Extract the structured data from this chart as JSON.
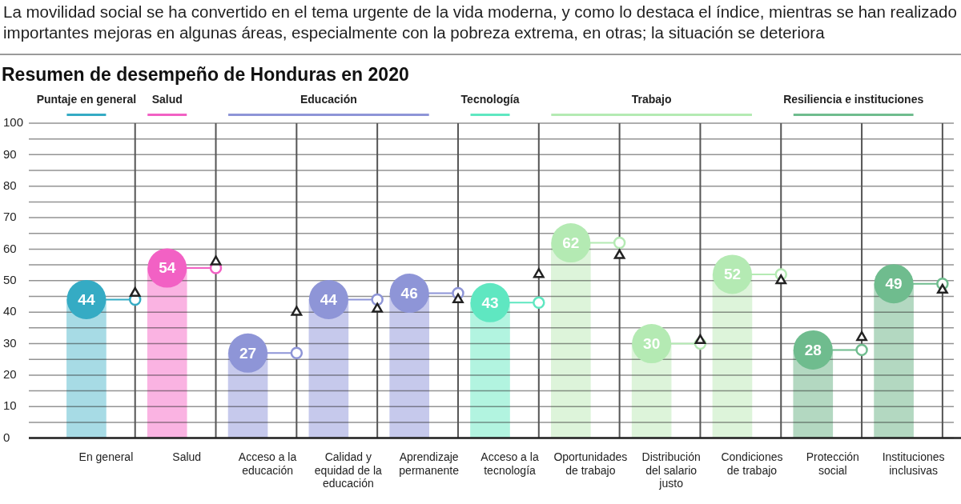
{
  "chart_data": {
    "type": "bar",
    "title": "Resumen de desempeño de Honduras en 2020",
    "subtitle": "La movilidad social se ha convertido en el tema urgente de la vida moderna, y como lo destaca el índice, mientras se han realizado importantes mejoras en algunas áreas, especialmente con la pobreza extrema, en otras; la situación se deteriora",
    "annotations": [
      "Puntaje en general",
      "Salud",
      "Educación",
      "Tecnología",
      "Trabajo",
      "Resiliencia e instituciones"
    ],
    "categories": [
      "En general",
      "Salud",
      "Acceso a la educación",
      "Calidad y equidad de la educación",
      "Aprendizaje permanente",
      "Acceso a la tecnología",
      "Oportunidades de trabajo",
      "Distribución del salario justo",
      "Condiciones de trabajo",
      "Protección social",
      "Instituciones inclusivas"
    ],
    "series": [
      {
        "colors": [
          "#a7dbe5",
          "#fab3e2",
          "#c6c9ec",
          "#c6c9ec",
          "#c6c9ec",
          "#b2f4e0",
          "#ddf4da",
          "#ddf4da",
          "#ddf4da",
          "#b3d8c1",
          "#b3d8c1"
        ],
        "values": [
          44,
          54,
          27,
          44,
          46,
          43,
          62,
          30,
          52,
          28,
          49
        ],
        "value_labels": [
          "44",
          "54",
          "27",
          "44",
          "46",
          "43",
          "62",
          "30",
          "52",
          "28",
          "49"
        ]
      },
      {
        "type": "scatter",
        "marker": "circle",
        "colors": [
          "#35abc4",
          "#f261c4",
          "#8e95d7",
          "#8e95d7",
          "#8e95d7",
          "#5fe7c1",
          "#b4eab3",
          "#b4eab3",
          "#b4eab3",
          "#6fbc8e",
          "#6fbc8e"
        ],
        "values": [
          44,
          54,
          27,
          44,
          46,
          43,
          62,
          30,
          52,
          28,
          49
        ]
      },
      {
        "type": "scatter",
        "marker": "triangle",
        "color": "#222222",
        "values": [
          46,
          56,
          40,
          41,
          44,
          52,
          58,
          31,
          50,
          32,
          47
        ]
      }
    ],
    "ylim": [
      0,
      100
    ],
    "yticks": [
      0,
      {
        "value": 5,
        "label": null
      },
      10,
      {
        "value": 15,
        "label": null
      },
      20,
      {
        "value": 25,
        "label": null
      },
      30,
      {
        "value": 35,
        "label": null
      },
      40,
      {
        "value": 45,
        "label": null
      },
      50,
      {
        "value": 55,
        "label": null
      },
      60,
      {
        "value": 65,
        "label": null
      },
      70,
      {
        "value": 75,
        "label": null
      },
      80,
      {
        "value": 85,
        "label": null
      },
      90,
      {
        "value": 95,
        "label": null
      },
      100
    ],
    "grid": "y"
  }
}
